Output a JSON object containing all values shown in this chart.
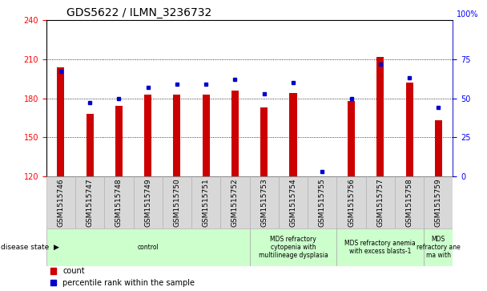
{
  "title": "GDS5622 / ILMN_3236732",
  "samples": [
    "GSM1515746",
    "GSM1515747",
    "GSM1515748",
    "GSM1515749",
    "GSM1515750",
    "GSM1515751",
    "GSM1515752",
    "GSM1515753",
    "GSM1515754",
    "GSM1515755",
    "GSM1515756",
    "GSM1515757",
    "GSM1515758",
    "GSM1515759"
  ],
  "counts": [
    204,
    168,
    174,
    183,
    183,
    183,
    186,
    173,
    184,
    120,
    178,
    212,
    192,
    163
  ],
  "percentiles": [
    67,
    47,
    50,
    57,
    59,
    59,
    62,
    53,
    60,
    3,
    50,
    72,
    63,
    44
  ],
  "ymin": 120,
  "ymax": 240,
  "yticks_left": [
    120,
    150,
    180,
    210,
    240
  ],
  "yticks_right": [
    0,
    25,
    50,
    75
  ],
  "bar_color": "#cc0000",
  "dot_color": "#0000cc",
  "groups": [
    {
      "label": "control",
      "start": 0,
      "end": 7
    },
    {
      "label": "MDS refractory\ncytopenia with\nmultilineage dysplasia",
      "start": 7,
      "end": 10
    },
    {
      "label": "MDS refractory anemia\nwith excess blasts-1",
      "start": 10,
      "end": 13
    },
    {
      "label": "MDS\nrefractory ane\nma with",
      "start": 13,
      "end": 14
    }
  ],
  "group_color": "#ccffcc",
  "sample_cell_color": "#d8d8d8",
  "legend_count_label": "count",
  "legend_pct_label": "percentile rank within the sample",
  "title_fontsize": 10,
  "tick_fontsize": 7,
  "label_fontsize": 6.5,
  "legend_fontsize": 7
}
